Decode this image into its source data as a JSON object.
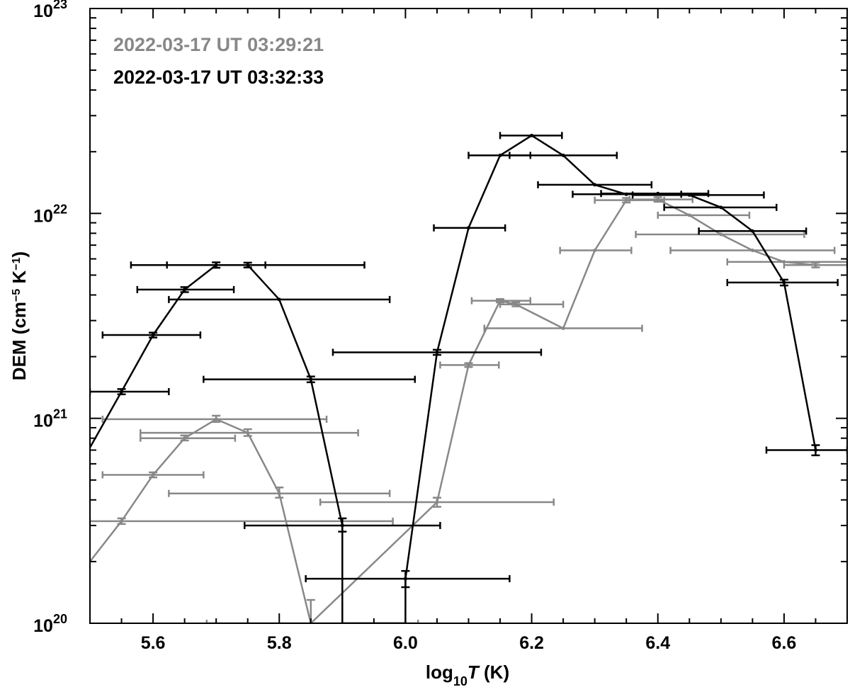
{
  "chart_data": {
    "type": "line",
    "title": "",
    "xlabel": {
      "base": "log",
      "sub": "10",
      "var": "T",
      "unit": " (K)"
    },
    "ylabel": {
      "main": "DEM (cm",
      "exp": "−5",
      "mid": " K",
      "exp2": "−1",
      "end": ")"
    },
    "xlim": [
      5.5,
      6.7
    ],
    "ylim": [
      1e+20,
      1e+23
    ],
    "yscale": "log",
    "grid": false,
    "legend_position": "top-left",
    "x_ticks": [
      "5.6",
      "5.8",
      "6.0",
      "6.2",
      "6.4",
      "6.6"
    ],
    "y_ticks": [
      {
        "base": "10",
        "exp": "20"
      },
      {
        "base": "10",
        "exp": "21"
      },
      {
        "base": "10",
        "exp": "22"
      },
      {
        "base": "10",
        "exp": "23"
      }
    ],
    "series": [
      {
        "name": "2022-03-17 UT 03:29:21",
        "color": "#888888",
        "points": [
          {
            "x": 5.5,
            "y": 2e+20
          },
          {
            "x": 5.55,
            "y": 3.15e+20,
            "ylo": 3.05e+20,
            "yhi": 3.25e+20,
            "xlo": 5.5,
            "xhi": 5.98
          },
          {
            "x": 5.6,
            "y": 5.3e+20,
            "ylo": 5.15e+20,
            "yhi": 5.45e+20,
            "xlo": 5.52,
            "xhi": 5.68
          },
          {
            "x": 5.65,
            "y": 8e+20,
            "ylo": 7.8e+20,
            "yhi": 8.25e+20,
            "xlo": 5.58,
            "xhi": 5.73
          },
          {
            "x": 5.7,
            "y": 9.9e+20,
            "ylo": 9.6e+20,
            "yhi": 1.03e+21,
            "xlo": 5.52,
            "xhi": 5.875
          },
          {
            "x": 5.75,
            "y": 8.5e+20,
            "ylo": 8.2e+20,
            "yhi": 8.85e+20,
            "xlo": 5.58,
            "xhi": 5.925
          },
          {
            "x": 5.8,
            "y": 4.3e+20,
            "ylo": 4.1e+20,
            "yhi": 4.6e+20,
            "xlo": 5.625,
            "xhi": 5.975
          },
          {
            "x": 5.85,
            "y": 1e+20,
            "ylo": 9e+19,
            "yhi": 1.3e+20,
            "xlo": 5.685,
            "xhi": 6.02
          },
          {
            "x": 6.05,
            "y": 3.9e+20,
            "ylo": 3.7e+20,
            "yhi": 4.1e+20,
            "xlo": 5.865,
            "xhi": 6.235
          },
          {
            "x": 6.1,
            "y": 1.82e+21,
            "ylo": 1.78e+21,
            "yhi": 1.86e+21,
            "xlo": 6.055,
            "xhi": 6.148
          },
          {
            "x": 6.15,
            "y": 3.75e+21,
            "ylo": 3.68e+21,
            "yhi": 3.82e+21,
            "xlo": 6.105,
            "xhi": 6.198
          },
          {
            "x": 6.175,
            "y": 3.6e+21,
            "ylo": 3.52e+21,
            "yhi": 3.68e+21,
            "xlo": 6.15,
            "xhi": 6.25
          },
          {
            "x": 6.25,
            "y": 2.75e+21,
            "xlo": 6.125,
            "xhi": 6.375
          },
          {
            "x": 6.3,
            "y": 6.6e+21,
            "xlo": 6.245,
            "xhi": 6.358
          },
          {
            "x": 6.35,
            "y": 1.16e+22,
            "ylo": 1.13e+22,
            "yhi": 1.19e+22,
            "xlo": 6.3,
            "xhi": 6.41
          },
          {
            "x": 6.4,
            "y": 1.17e+22,
            "ylo": 1.14e+22,
            "yhi": 1.2e+22,
            "xlo": 6.355,
            "xhi": 6.455
          },
          {
            "x": 6.45,
            "y": 9.8e+21,
            "xlo": 6.4,
            "xhi": 6.545
          },
          {
            "x": 6.5,
            "y": 7.9e+21,
            "xlo": 6.365,
            "xhi": 6.632
          },
          {
            "x": 6.55,
            "y": 6.6e+21,
            "xlo": 6.42,
            "xhi": 6.68
          },
          {
            "x": 6.6,
            "y": 5.8e+21,
            "xlo": 6.51,
            "xhi": 6.7
          },
          {
            "x": 6.65,
            "y": 5.6e+21,
            "ylo": 5.45e+21,
            "yhi": 5.75e+21,
            "xlo": 6.6,
            "xhi": 6.7
          },
          {
            "x": 6.7,
            "y": 5.6e+21
          }
        ]
      },
      {
        "name": "2022-03-17 UT 03:32:33",
        "color": "#000000",
        "points": [
          {
            "x": 5.5,
            "y": 7.2e+20
          },
          {
            "x": 5.55,
            "y": 1.35e+21,
            "ylo": 1.31e+21,
            "yhi": 1.39e+21,
            "xlo": 5.5,
            "xhi": 5.625
          },
          {
            "x": 5.6,
            "y": 2.55e+21,
            "ylo": 2.48e+21,
            "yhi": 2.62e+21,
            "xlo": 5.52,
            "xhi": 5.675
          },
          {
            "x": 5.65,
            "y": 4.25e+21,
            "ylo": 4.13e+21,
            "yhi": 4.37e+21,
            "xlo": 5.575,
            "xhi": 5.728
          },
          {
            "x": 5.7,
            "y": 5.6e+21,
            "ylo": 5.43e+21,
            "yhi": 5.77e+21,
            "xlo": 5.565,
            "xhi": 5.778
          },
          {
            "x": 5.75,
            "y": 5.6e+21,
            "ylo": 5.45e+21,
            "yhi": 5.75e+21,
            "xlo": 5.622,
            "xhi": 5.935
          },
          {
            "x": 5.8,
            "y": 3.8e+21,
            "xlo": 5.625,
            "xhi": 5.975
          },
          {
            "x": 5.85,
            "y": 1.55e+21,
            "ylo": 1.5e+21,
            "yhi": 1.6e+21,
            "xlo": 5.68,
            "xhi": 6.015
          },
          {
            "x": 5.9,
            "y": 3e+20,
            "ylo": 2.8e+20,
            "yhi": 3.25e+20,
            "xlo": 5.745,
            "xhi": 6.055
          },
          {
            "x": 5.9,
            "y": 1e+20
          },
          {
            "x": 6.0,
            "y": 1e+20
          },
          {
            "x": 6.0,
            "y": 1.65e+20,
            "ylo": 1.5e+20,
            "yhi": 1.8e+20,
            "xlo": 5.842,
            "xhi": 6.165
          },
          {
            "x": 6.05,
            "y": 2.1e+21,
            "ylo": 2.04e+21,
            "yhi": 2.16e+21,
            "xlo": 5.885,
            "xhi": 6.215
          },
          {
            "x": 6.1,
            "y": 8.5e+21,
            "xlo": 6.045,
            "xhi": 6.158
          },
          {
            "x": 6.15,
            "y": 1.92e+22,
            "xlo": 6.1,
            "xhi": 6.198
          },
          {
            "x": 6.2,
            "y": 2.4e+22,
            "xlo": 6.15,
            "xhi": 6.248
          },
          {
            "x": 6.25,
            "y": 1.92e+22,
            "xlo": 6.165,
            "xhi": 6.335
          },
          {
            "x": 6.3,
            "y": 1.38e+22,
            "xlo": 6.21,
            "xhi": 6.39
          },
          {
            "x": 6.35,
            "y": 1.24e+22,
            "xlo": 6.265,
            "xhi": 6.437
          },
          {
            "x": 6.4,
            "y": 1.25e+22,
            "xlo": 6.31,
            "xhi": 6.48
          },
          {
            "x": 6.45,
            "y": 1.23e+22,
            "xlo": 6.36,
            "xhi": 6.568
          },
          {
            "x": 6.5,
            "y": 1.07e+22,
            "xlo": 6.41,
            "xhi": 6.588
          },
          {
            "x": 6.55,
            "y": 8.2e+21,
            "xlo": 6.465,
            "xhi": 6.635
          },
          {
            "x": 6.6,
            "y": 4.6e+21,
            "ylo": 4.45e+21,
            "yhi": 4.75e+21,
            "xlo": 6.51,
            "xhi": 6.685
          },
          {
            "x": 6.65,
            "y": 7e+20,
            "ylo": 6.6e+20,
            "yhi": 7.4e+20,
            "xlo": 6.572,
            "xhi": 6.7
          }
        ]
      }
    ]
  }
}
